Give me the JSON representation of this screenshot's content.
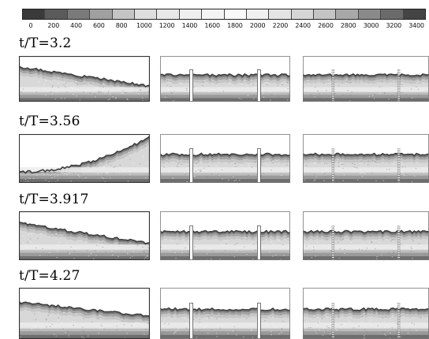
{
  "colorbar": {
    "tick_labels": [
      "0",
      "200",
      "400",
      "600",
      "800",
      "1000",
      "1200",
      "1400",
      "1600",
      "1800",
      "2000",
      "2200",
      "2400",
      "2600",
      "2800",
      "3000",
      "3200",
      "3400"
    ],
    "colors": [
      "#3a3a3a",
      "#5a5a5a",
      "#7a7a7a",
      "#a0a0a0",
      "#c4c4c4",
      "#dedede",
      "#e8e8e8",
      "#efefef",
      "#f4f4f4",
      "#f9f9f9",
      "#f0f0f0",
      "#e4e4e4",
      "#d6d6d6",
      "#c4c4c4",
      "#a8a8a8",
      "#8a8a8a",
      "#6a6a6a",
      "#444444"
    ]
  },
  "snapshots": [
    {
      "label": "t/T=3.2",
      "left_surface": "slope-down"
    },
    {
      "label": "t/T=3.56",
      "left_surface": "slope-up"
    },
    {
      "label": "t/T=3.917",
      "left_surface": "slope-down"
    },
    {
      "label": "t/T=4.27",
      "left_surface": "slope-down-slight"
    }
  ],
  "panel_types": [
    "open-tank",
    "solid-baffles",
    "porous-baffles"
  ]
}
